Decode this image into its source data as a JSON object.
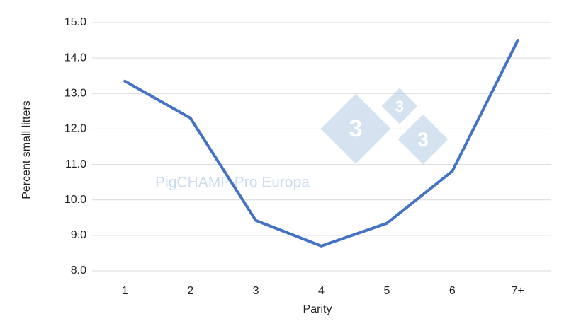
{
  "chart_data": {
    "type": "line",
    "x_label": "Parity",
    "y_label": "Percent small litters",
    "categories": [
      "1",
      "2",
      "3",
      "4",
      "5",
      "6",
      "7+"
    ],
    "series": [
      {
        "name": "Percent small litters",
        "color": "#4472c4",
        "values": [
          13.35,
          12.31,
          9.42,
          8.7,
          9.34,
          10.81,
          14.5
        ]
      }
    ],
    "ylim": [
      8,
      15
    ],
    "yticks": [
      {
        "value": 8,
        "label": "8.0"
      },
      {
        "value": 9,
        "label": "9.0"
      },
      {
        "value": 10,
        "label": "10.0"
      },
      {
        "value": 11,
        "label": "11.0"
      },
      {
        "value": 12,
        "label": "12.0"
      },
      {
        "value": 13,
        "label": "13.0"
      },
      {
        "value": 14,
        "label": "14.0"
      },
      {
        "value": 15,
        "label": "15.0"
      }
    ],
    "grid": true,
    "watermark": "PigCHAMP Pro Europa",
    "logo_text": "3"
  }
}
